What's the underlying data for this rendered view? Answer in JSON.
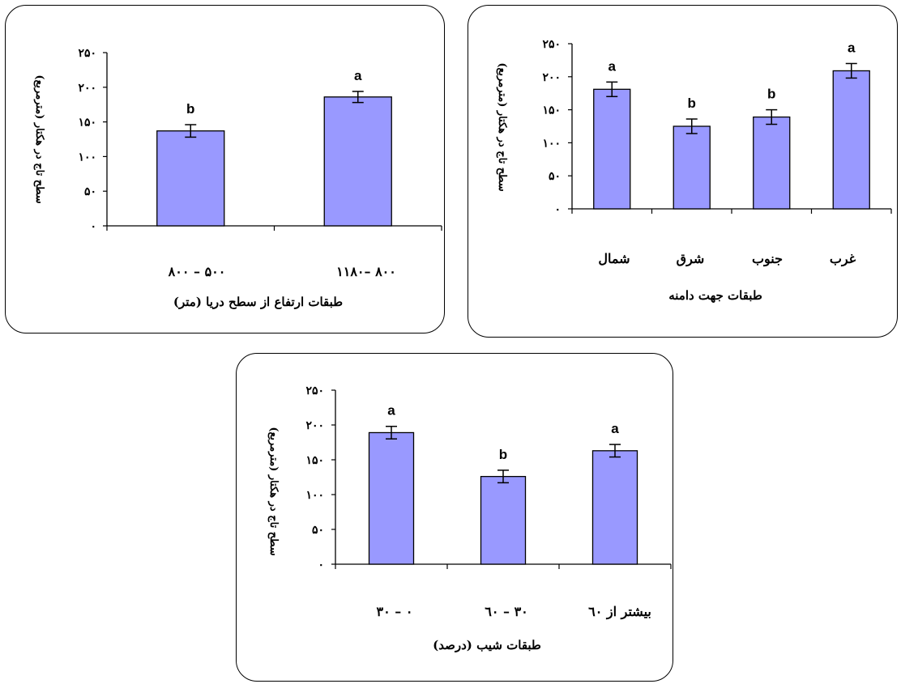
{
  "colors": {
    "bar_fill": "#9999ff",
    "bar_stroke": "#000000",
    "axis": "#000000"
  },
  "chart_data": [
    {
      "id": "elev",
      "type": "bar",
      "categories": [
        "۵۰۰ – ۸۰۰",
        "۸۰۰ –۱۱۸۰"
      ],
      "values": [
        137,
        186
      ],
      "errors": [
        9,
        8
      ],
      "letters": [
        "b",
        "a"
      ],
      "xlabel": "طبقات ارتفاع از سطح دریا (متر)",
      "ylabel": "سطح تاج در هکتار (مترمربع)",
      "ylim": [
        0,
        250
      ],
      "yticks": [
        "۰",
        "۵۰",
        "۱۰۰",
        "۱۵۰",
        "۲۰۰",
        "۲۵۰"
      ],
      "grid": false,
      "legend": "none"
    },
    {
      "id": "asp",
      "type": "bar",
      "categories": [
        "شمال",
        "شرق",
        "جنوب",
        "غرب"
      ],
      "values": [
        181,
        125,
        139,
        209
      ],
      "errors": [
        11,
        11,
        11,
        11
      ],
      "letters": [
        "a",
        "b",
        "b",
        "a"
      ],
      "xlabel": "طبقات جهت دامنه",
      "ylabel": "سطح تاج در هکتار (مترمربع)",
      "ylim": [
        0,
        250
      ],
      "yticks": [
        "۰",
        "۵۰",
        "۱۰۰",
        "۱۵۰",
        "۲۰۰",
        "۲۵۰"
      ],
      "grid": false,
      "legend": "none"
    },
    {
      "id": "slope",
      "type": "bar",
      "categories": [
        "۰ – ۳۰",
        "۳۰ – ٦۰",
        "بیشتر از ٦۰"
      ],
      "values": [
        189,
        126,
        163
      ],
      "errors": [
        9,
        9,
        9
      ],
      "letters": [
        "a",
        "b",
        "a"
      ],
      "xlabel": "طبقات شیب (درصد)",
      "ylabel": "سطح تاج در هکتار (مترمربع)",
      "ylim": [
        0,
        250
      ],
      "yticks": [
        "۰",
        "۵۰",
        "۱۰۰",
        "۱۵۰",
        "۲۰۰",
        "۲۵۰"
      ],
      "grid": false,
      "legend": "none"
    }
  ]
}
